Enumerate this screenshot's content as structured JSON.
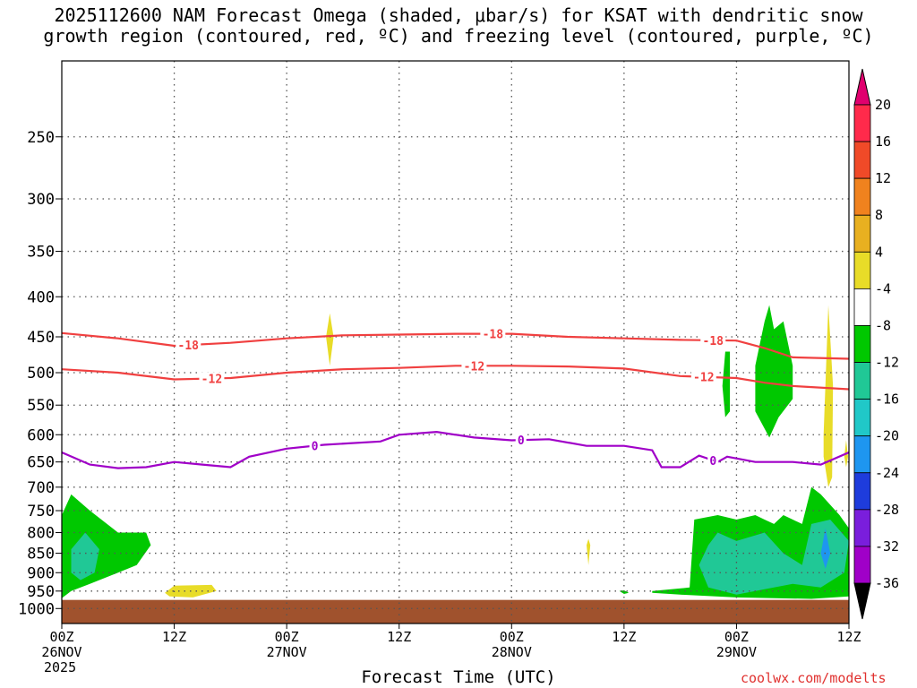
{
  "title": "2025112600 NAM Forecast Omega (shaded, μbar/s) for KSAT with dendritic snow\ngrowth region (contoured, red, ºC) and freezing level (contoured, purple, ºC)",
  "credit": "coolwx.com/modelts",
  "chart_data": {
    "type": "heatmap",
    "xlabel": "Forecast Time (UTC)",
    "ylabel": "",
    "x_range_hours": [
      0,
      84
    ],
    "y_range_hPa": [
      200,
      1045
    ],
    "y_log_scale": true,
    "grid": true,
    "y_ticks": [
      250,
      300,
      350,
      400,
      450,
      500,
      550,
      600,
      650,
      700,
      750,
      800,
      850,
      900,
      950,
      1000
    ],
    "x_ticks": [
      {
        "hour": 0,
        "label": "00Z",
        "date": "26NOV",
        "year": "2025"
      },
      {
        "hour": 12,
        "label": "12Z",
        "date": "",
        "year": ""
      },
      {
        "hour": 24,
        "label": "00Z",
        "date": "27NOV",
        "year": ""
      },
      {
        "hour": 36,
        "label": "12Z",
        "date": "",
        "year": ""
      },
      {
        "hour": 48,
        "label": "00Z",
        "date": "28NOV",
        "year": ""
      },
      {
        "hour": 60,
        "label": "12Z",
        "date": "",
        "year": ""
      },
      {
        "hour": 72,
        "label": "00Z",
        "date": "29NOV",
        "year": ""
      },
      {
        "hour": 84,
        "label": "12Z",
        "date": "",
        "year": ""
      }
    ],
    "colorbar": {
      "labels": [
        "20",
        "16",
        "12",
        "8",
        "4",
        "-4",
        "-8",
        "-12",
        "-16",
        "-20",
        "-24",
        "-28",
        "-32",
        "-36"
      ],
      "colors": [
        "#ff2a4b",
        "#f04a28",
        "#f0821e",
        "#e8b020",
        "#e8dc28",
        "#ffffff",
        "#00c800",
        "#20c896",
        "#20c8c8",
        "#1e96f0",
        "#1e3cdc",
        "#7a1edc",
        "#a000c8",
        "#a0a0a0"
      ],
      "over_color": "#e0006e",
      "under_color": "#000000"
    },
    "contours": [
      {
        "color": "#f04040",
        "label": "-18",
        "points": [
          [
            0,
            445
          ],
          [
            6,
            452
          ],
          [
            12,
            462
          ],
          [
            18,
            458
          ],
          [
            24,
            452
          ],
          [
            30,
            448
          ],
          [
            36,
            447
          ],
          [
            42,
            446
          ],
          [
            48,
            446
          ],
          [
            54,
            450
          ],
          [
            60,
            452
          ],
          [
            66,
            454
          ],
          [
            72,
            455
          ],
          [
            75,
            465
          ],
          [
            78,
            478
          ],
          [
            84,
            480
          ]
        ],
        "label_hours": [
          13.5,
          46,
          69.5
        ]
      },
      {
        "color": "#f04040",
        "label": "-12",
        "points": [
          [
            0,
            495
          ],
          [
            6,
            500
          ],
          [
            12,
            510
          ],
          [
            18,
            508
          ],
          [
            24,
            500
          ],
          [
            30,
            495
          ],
          [
            36,
            493
          ],
          [
            42,
            490
          ],
          [
            48,
            490
          ],
          [
            54,
            491
          ],
          [
            60,
            494
          ],
          [
            66,
            505
          ],
          [
            72,
            508
          ],
          [
            75,
            515
          ],
          [
            78,
            520
          ],
          [
            84,
            525
          ]
        ],
        "label_hours": [
          16,
          44,
          68.5
        ]
      },
      {
        "color": "#a000c8",
        "label": "0",
        "points": [
          [
            0,
            632
          ],
          [
            3,
            655
          ],
          [
            6,
            662
          ],
          [
            9,
            660
          ],
          [
            12,
            650
          ],
          [
            15,
            655
          ],
          [
            18,
            660
          ],
          [
            20,
            640
          ],
          [
            24,
            625
          ],
          [
            28,
            618
          ],
          [
            34,
            612
          ],
          [
            36,
            600
          ],
          [
            40,
            595
          ],
          [
            44,
            605
          ],
          [
            48,
            610
          ],
          [
            52,
            608
          ],
          [
            56,
            620
          ],
          [
            60,
            620
          ],
          [
            63,
            628
          ],
          [
            64,
            660
          ],
          [
            66,
            660
          ],
          [
            68,
            638
          ],
          [
            70,
            650
          ],
          [
            71,
            640
          ],
          [
            74,
            650
          ],
          [
            78,
            650
          ],
          [
            81,
            655
          ],
          [
            84,
            632
          ]
        ],
        "label_hours": [
          27,
          49,
          69.5
        ]
      }
    ],
    "shaded_regions": [
      {
        "value": -6,
        "color": "#00c800",
        "polygon": [
          [
            0,
            970
          ],
          [
            0,
            760
          ],
          [
            1,
            715
          ],
          [
            3,
            750
          ],
          [
            6,
            800
          ],
          [
            9,
            800
          ],
          [
            9.5,
            830
          ],
          [
            8,
            880
          ],
          [
            6,
            900
          ],
          [
            3,
            930
          ],
          [
            1,
            950
          ],
          [
            0,
            970
          ]
        ]
      },
      {
        "value": -10,
        "color": "#20c896",
        "polygon": [
          [
            1,
            900
          ],
          [
            1,
            840
          ],
          [
            2.5,
            800
          ],
          [
            4,
            840
          ],
          [
            3.5,
            900
          ],
          [
            2,
            920
          ],
          [
            1,
            900
          ]
        ]
      },
      {
        "value": 6,
        "color": "#e8dc28",
        "polygon": [
          [
            11,
            955
          ],
          [
            12,
            935
          ],
          [
            16,
            933
          ],
          [
            16.5,
            950
          ],
          [
            14,
            968
          ],
          [
            11.5,
            965
          ],
          [
            11,
            955
          ]
        ]
      },
      {
        "value": 6,
        "color": "#e8dc28",
        "polygon": [
          [
            28.2,
            450
          ],
          [
            28.6,
            420
          ],
          [
            29,
            450
          ],
          [
            28.6,
            490
          ],
          [
            28.2,
            450
          ]
        ]
      },
      {
        "value": 6,
        "color": "#e8dc28",
        "polygon": [
          [
            56,
            830
          ],
          [
            56.2,
            815
          ],
          [
            56.4,
            830
          ],
          [
            56.2,
            880
          ],
          [
            56,
            830
          ]
        ]
      },
      {
        "value": -6,
        "color": "#00c800",
        "polygon": [
          [
            59.5,
            950
          ],
          [
            60,
            948
          ],
          [
            60.5,
            955
          ],
          [
            60,
            958
          ],
          [
            59.5,
            950
          ]
        ]
      },
      {
        "value": -6,
        "color": "#00c800",
        "polygon": [
          [
            63,
            950
          ],
          [
            67,
            940
          ],
          [
            67.5,
            770
          ],
          [
            70,
            760
          ],
          [
            72,
            770
          ],
          [
            74,
            760
          ],
          [
            75,
            770
          ],
          [
            76,
            780
          ],
          [
            77,
            760
          ],
          [
            79,
            780
          ],
          [
            80,
            700
          ],
          [
            81,
            715
          ],
          [
            83,
            760
          ],
          [
            84,
            790
          ],
          [
            84,
            965
          ],
          [
            80,
            972
          ],
          [
            72,
            968
          ],
          [
            66,
            960
          ],
          [
            63,
            955
          ],
          [
            63,
            950
          ]
        ]
      },
      {
        "value": -10,
        "color": "#20c896",
        "polygon": [
          [
            68,
            880
          ],
          [
            69,
            830
          ],
          [
            70,
            800
          ],
          [
            72,
            820
          ],
          [
            75,
            800
          ],
          [
            77,
            850
          ],
          [
            79,
            880
          ],
          [
            80,
            780
          ],
          [
            82,
            770
          ],
          [
            84,
            820
          ],
          [
            83.5,
            900
          ],
          [
            81,
            940
          ],
          [
            78,
            930
          ],
          [
            72,
            960
          ],
          [
            69,
            940
          ],
          [
            68,
            880
          ]
        ]
      },
      {
        "value": -18,
        "color": "#1e96f0",
        "polygon": [
          [
            81,
            850
          ],
          [
            81.5,
            790
          ],
          [
            82,
            850
          ],
          [
            81.5,
            890
          ],
          [
            81,
            850
          ]
        ]
      },
      {
        "value": -6,
        "color": "#00c800",
        "polygon": [
          [
            70.5,
            520
          ],
          [
            70.8,
            470
          ],
          [
            71.3,
            470
          ],
          [
            71.3,
            560
          ],
          [
            70.8,
            570
          ],
          [
            70.5,
            520
          ]
        ]
      },
      {
        "value": -6,
        "color": "#00c800",
        "polygon": [
          [
            74,
            490
          ],
          [
            75,
            430
          ],
          [
            75.5,
            410
          ],
          [
            76,
            440
          ],
          [
            77,
            430
          ],
          [
            78,
            490
          ],
          [
            78,
            540
          ],
          [
            76.5,
            570
          ],
          [
            75.5,
            605
          ],
          [
            74,
            560
          ],
          [
            74,
            490
          ]
        ]
      },
      {
        "value": 6,
        "color": "#e8dc28",
        "polygon": [
          [
            81.3,
            600
          ],
          [
            81.8,
            410
          ],
          [
            82.3,
            520
          ],
          [
            82.2,
            680
          ],
          [
            81.8,
            700
          ],
          [
            81.3,
            640
          ],
          [
            81.3,
            600
          ]
        ]
      },
      {
        "value": 6,
        "color": "#e8dc28",
        "polygon": [
          [
            83.5,
            640
          ],
          [
            83.7,
            610
          ],
          [
            83.9,
            640
          ],
          [
            83.7,
            660
          ],
          [
            83.5,
            640
          ]
        ]
      }
    ],
    "surface": {
      "color": "#a0522d",
      "from_hPa": 975
    }
  }
}
